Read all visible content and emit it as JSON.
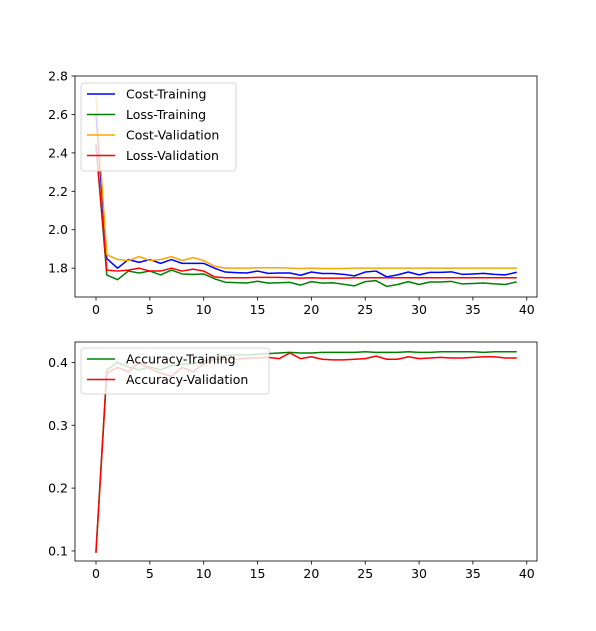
{
  "chart_data": [
    {
      "type": "line",
      "title": "",
      "xlabel": "",
      "ylabel": "",
      "xlim": [
        -1.95,
        40.95
      ],
      "ylim": [
        1.65,
        2.8
      ],
      "xticks": [
        0,
        5,
        10,
        15,
        20,
        25,
        30,
        35,
        40
      ],
      "xtick_labels": [
        "0",
        "5",
        "10",
        "15",
        "20",
        "25",
        "30",
        "35",
        "40"
      ],
      "yticks": [
        1.8,
        2.0,
        2.2,
        2.4,
        2.6,
        2.8
      ],
      "ytick_labels": [
        "1.8",
        "2.0",
        "2.2",
        "2.4",
        "2.6",
        "2.8"
      ],
      "grid": false,
      "legend_position": "top-left",
      "x": [
        0,
        1,
        2,
        3,
        4,
        5,
        6,
        7,
        8,
        9,
        10,
        11,
        12,
        13,
        14,
        15,
        16,
        17,
        18,
        19,
        20,
        21,
        22,
        23,
        24,
        25,
        26,
        27,
        28,
        29,
        30,
        31,
        32,
        33,
        34,
        35,
        36,
        37,
        38,
        39
      ],
      "series": [
        {
          "name": "Cost-Training",
          "color": "#0000ff",
          "values": [
            2.6,
            1.85,
            1.8,
            1.845,
            1.83,
            1.845,
            1.825,
            1.845,
            1.825,
            1.825,
            1.825,
            1.8,
            1.78,
            1.777,
            1.775,
            1.785,
            1.773,
            1.775,
            1.775,
            1.763,
            1.78,
            1.772,
            1.772,
            1.768,
            1.76,
            1.78,
            1.785,
            1.755,
            1.765,
            1.78,
            1.765,
            1.778,
            1.778,
            1.781,
            1.768,
            1.77,
            1.773,
            1.768,
            1.765,
            1.778
          ]
        },
        {
          "name": "Loss-Training",
          "color": "#008000",
          "values": [
            2.44,
            1.765,
            1.74,
            1.785,
            1.775,
            1.785,
            1.765,
            1.79,
            1.77,
            1.768,
            1.77,
            1.745,
            1.727,
            1.725,
            1.723,
            1.732,
            1.722,
            1.724,
            1.726,
            1.712,
            1.73,
            1.722,
            1.724,
            1.716,
            1.708,
            1.73,
            1.735,
            1.705,
            1.715,
            1.73,
            1.715,
            1.728,
            1.728,
            1.731,
            1.718,
            1.72,
            1.723,
            1.718,
            1.715,
            1.728
          ]
        },
        {
          "name": "Cost-Validation",
          "color": "#ffa500",
          "values": [
            2.69,
            1.87,
            1.845,
            1.84,
            1.86,
            1.84,
            1.845,
            1.86,
            1.84,
            1.855,
            1.84,
            1.81,
            1.8,
            1.8,
            1.8,
            1.802,
            1.802,
            1.802,
            1.8,
            1.798,
            1.8,
            1.798,
            1.798,
            1.798,
            1.8,
            1.8,
            1.8,
            1.8,
            1.8,
            1.8,
            1.8,
            1.8,
            1.8,
            1.8,
            1.8,
            1.8,
            1.8,
            1.8,
            1.8,
            1.8
          ]
        },
        {
          "name": "Loss-Validation",
          "color": "#ff0000",
          "values": [
            2.44,
            1.79,
            1.785,
            1.79,
            1.8,
            1.785,
            1.785,
            1.8,
            1.785,
            1.795,
            1.785,
            1.755,
            1.75,
            1.75,
            1.75,
            1.752,
            1.752,
            1.752,
            1.75,
            1.748,
            1.75,
            1.748,
            1.748,
            1.748,
            1.75,
            1.75,
            1.75,
            1.75,
            1.75,
            1.75,
            1.75,
            1.75,
            1.75,
            1.75,
            1.75,
            1.75,
            1.75,
            1.75,
            1.75,
            1.75
          ]
        }
      ]
    },
    {
      "type": "line",
      "title": "",
      "xlabel": "",
      "ylabel": "",
      "xlim": [
        -1.95,
        40.95
      ],
      "ylim": [
        0.084,
        0.4325
      ],
      "xticks": [
        0,
        5,
        10,
        15,
        20,
        25,
        30,
        35,
        40
      ],
      "xtick_labels": [
        "0",
        "5",
        "10",
        "15",
        "20",
        "25",
        "30",
        "35",
        "40"
      ],
      "yticks": [
        0.1,
        0.2,
        0.3,
        0.4
      ],
      "ytick_labels": [
        "0.1",
        "0.2",
        "0.3",
        "0.4"
      ],
      "grid": false,
      "legend_position": "top-left",
      "x": [
        0,
        1,
        2,
        3,
        4,
        5,
        6,
        7,
        8,
        9,
        10,
        11,
        12,
        13,
        14,
        15,
        16,
        17,
        18,
        19,
        20,
        21,
        22,
        23,
        24,
        25,
        26,
        27,
        28,
        29,
        30,
        31,
        32,
        33,
        34,
        35,
        36,
        37,
        38,
        39
      ],
      "series": [
        {
          "name": "Accuracy-Training",
          "color": "#008000",
          "values": [
            0.1,
            0.388,
            0.4,
            0.393,
            0.388,
            0.393,
            0.388,
            0.395,
            0.397,
            0.398,
            0.402,
            0.408,
            0.411,
            0.412,
            0.412,
            0.413,
            0.414,
            0.415,
            0.416,
            0.415,
            0.415,
            0.416,
            0.416,
            0.416,
            0.416,
            0.417,
            0.416,
            0.416,
            0.416,
            0.417,
            0.416,
            0.416,
            0.417,
            0.417,
            0.417,
            0.417,
            0.416,
            0.417,
            0.417,
            0.417
          ]
        },
        {
          "name": "Accuracy-Validation",
          "color": "#ff0000",
          "values": [
            0.098,
            0.383,
            0.392,
            0.385,
            0.4,
            0.39,
            0.383,
            0.378,
            0.392,
            0.385,
            0.398,
            0.405,
            0.405,
            0.405,
            0.407,
            0.407,
            0.408,
            0.406,
            0.415,
            0.406,
            0.409,
            0.405,
            0.404,
            0.404,
            0.405,
            0.406,
            0.41,
            0.405,
            0.405,
            0.409,
            0.406,
            0.407,
            0.408,
            0.407,
            0.407,
            0.408,
            0.409,
            0.409,
            0.407,
            0.407
          ]
        }
      ]
    }
  ]
}
